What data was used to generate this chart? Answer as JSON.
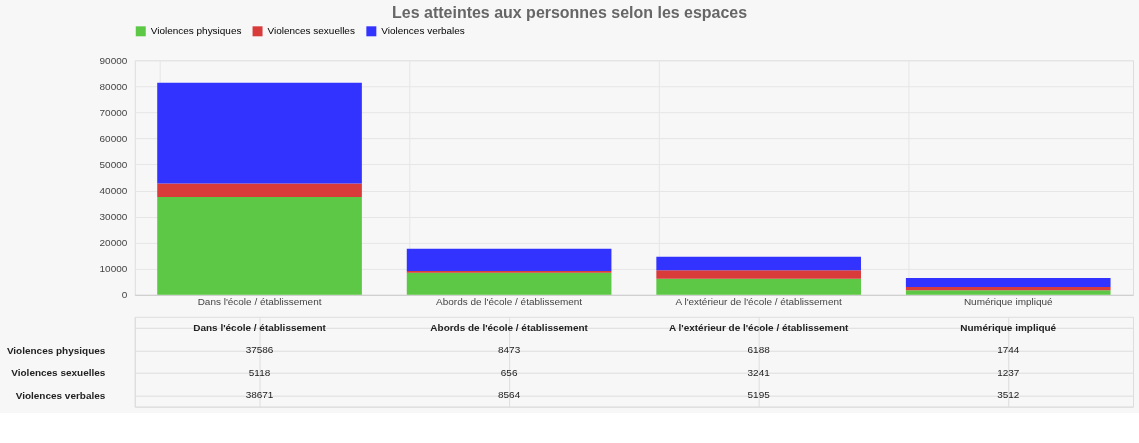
{
  "chart_data": {
    "type": "bar",
    "title": "Les atteintes aux personnes selon les espaces",
    "categories": [
      "Dans l'école / établissement",
      "Abords de l'école / établissement",
      "A l'extérieur de l'école / établissement",
      "Numérique impliqué"
    ],
    "series": [
      {
        "name": "Violences physiques",
        "color": "#5cc845",
        "values": [
          37586,
          8473,
          6188,
          1744
        ]
      },
      {
        "name": "Violences sexuelles",
        "color": "#d93b3b",
        "values": [
          5118,
          656,
          3241,
          1237
        ]
      },
      {
        "name": "Violences verbales",
        "color": "#3333ff",
        "values": [
          38671,
          8564,
          5195,
          3512
        ]
      }
    ],
    "stacked": true,
    "ylim": [
      0,
      90000
    ],
    "yticks": [
      0,
      10000,
      20000,
      30000,
      40000,
      50000,
      60000,
      70000,
      80000,
      90000
    ],
    "grid": true,
    "legend": "top",
    "data_labels": true
  }
}
